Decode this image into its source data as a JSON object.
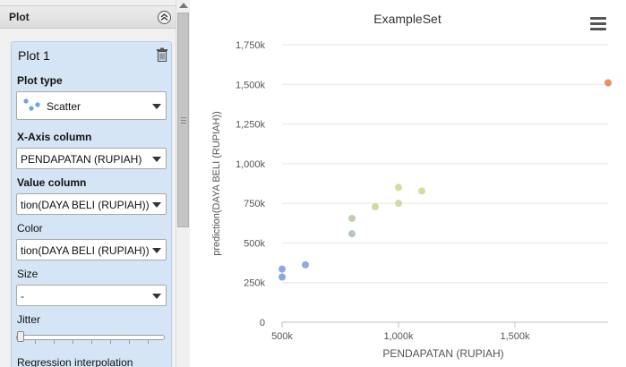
{
  "panel": {
    "title": "Plot",
    "plot_name": "Plot 1",
    "plot_type_label": "Plot type",
    "plot_type_value": "Scatter",
    "x_axis_label": "X-Axis column",
    "x_axis_value": "PENDAPATAN (RUPIAH)",
    "value_column_label": "Value column",
    "value_column_value": "tion(DAYA BELI (RUPIAH))",
    "color_label": "Color",
    "color_value": "tion(DAYA BELI (RUPIAH))",
    "size_label": "Size",
    "size_value": "-",
    "jitter_label": "Jitter",
    "jitter_level": 0,
    "regression_label": "Regression interpolation"
  },
  "icons": {
    "collapse": "double-chevron-up-icon",
    "delete": "trash-icon",
    "plot_type": "scatter-icon",
    "menu": "hamburger-menu-icon"
  },
  "chart_data": {
    "type": "scatter",
    "title": "ExampleSet",
    "xlabel": "PENDAPATAN (RUPIAH)",
    "ylabel": "prediction(DAYA BELI (RUPIAH))",
    "xlim": [
      500000,
      1900000
    ],
    "ylim": [
      0,
      1750000
    ],
    "x_ticks": [
      500000,
      1000000,
      1500000
    ],
    "x_tick_labels": [
      "500k",
      "1,000k",
      "1,500k"
    ],
    "y_ticks": [
      0,
      250000,
      500000,
      750000,
      1000000,
      1250000,
      1500000,
      1750000
    ],
    "y_tick_labels": [
      "0",
      "250k",
      "500k",
      "750k",
      "1,000k",
      "1,250k",
      "1,500k",
      "1,750k"
    ],
    "grid": true,
    "points": [
      {
        "x": 500000,
        "y": 285000,
        "color": "#8faad8"
      },
      {
        "x": 500000,
        "y": 335000,
        "color": "#8faad8"
      },
      {
        "x": 600000,
        "y": 362000,
        "color": "#92aed6"
      },
      {
        "x": 800000,
        "y": 558000,
        "color": "#b5c8c0"
      },
      {
        "x": 800000,
        "y": 655000,
        "color": "#bdd0b0"
      },
      {
        "x": 900000,
        "y": 728000,
        "color": "#cfd8a6"
      },
      {
        "x": 1000000,
        "y": 750000,
        "color": "#d1d9a6"
      },
      {
        "x": 1000000,
        "y": 850000,
        "color": "#d6dca2"
      },
      {
        "x": 1100000,
        "y": 828000,
        "color": "#d6dca2"
      },
      {
        "x": 1900000,
        "y": 1510000,
        "color": "#ec8f66"
      }
    ]
  }
}
